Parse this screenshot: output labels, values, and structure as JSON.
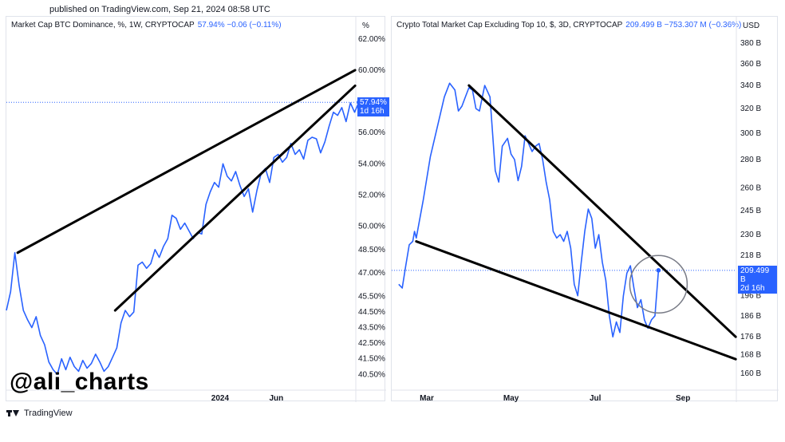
{
  "published": "published on TradingView.com, Sep 21, 2024 08:58 UTC",
  "watermark": "@ali_charts",
  "brand": "TradingView",
  "colors": {
    "line": "#2962ff",
    "trend": "#000000",
    "circle": "#787b86"
  },
  "left_chart": {
    "legend_title": "Market Cap BTC Dominance, %, 1W, CRYPTOCAP",
    "legend_values": "57.94%  −0.06 (−0.11%)",
    "axis_unit": "%",
    "last_value_tag": "57.94%",
    "countdown_tag": "1d 16h"
  },
  "right_chart": {
    "legend_title": "Crypto Total Market Cap Excluding Top 10, $, 3D, CRYPTOCAP",
    "legend_values": "209.499 B  −753.307 M (−0.36%)",
    "axis_unit": "USD",
    "last_value_tag": "209.499 B",
    "countdown_tag": "2d 16h"
  },
  "chart_data": [
    {
      "type": "line",
      "title": "Market Cap BTC Dominance, %, 1W, CRYPTOCAP",
      "y_ticks": [
        "62.00%",
        "60.00%",
        "57.94%",
        "56.00%",
        "54.00%",
        "52.00%",
        "50.00%",
        "48.50%",
        "47.00%",
        "45.50%",
        "44.50%",
        "43.50%",
        "42.50%",
        "41.50%",
        "40.50%"
      ],
      "y_tick_values": [
        62.0,
        60.0,
        57.94,
        56.0,
        54.0,
        52.0,
        50.0,
        48.5,
        47.0,
        45.5,
        44.5,
        43.5,
        42.5,
        41.5,
        40.5
      ],
      "x_ticks": [
        "2024",
        "Jun"
      ],
      "x_tick_positions": [
        0.57,
        0.72
      ],
      "series": [
        {
          "values": [
            44.6,
            45.8,
            48.3,
            46.2,
            44.6,
            44.0,
            43.5,
            44.2,
            43.0,
            42.4,
            41.3,
            40.8,
            40.5,
            41.5,
            40.8,
            41.6,
            41.0,
            40.7,
            41.4,
            40.9,
            41.2,
            41.8,
            41.3,
            40.7,
            41.0,
            41.6,
            42.2,
            43.8,
            44.6,
            44.2,
            44.5,
            47.5,
            47.7,
            47.3,
            47.6,
            48.5,
            48.0,
            48.7,
            49.2,
            50.7,
            50.5,
            49.8,
            50.2,
            49.7,
            49.2,
            49.6,
            49.5,
            51.4,
            52.2,
            52.8,
            52.5,
            54.0,
            53.2,
            52.9,
            53.5,
            52.6,
            51.9,
            52.4,
            50.9,
            52.3,
            53.4,
            53.7,
            52.8,
            54.4,
            54.6,
            54.1,
            54.4,
            55.3,
            54.6,
            54.9,
            54.3,
            55.5,
            55.7,
            55.6,
            54.7,
            55.4,
            56.4,
            57.3,
            57.1,
            57.6,
            56.7,
            57.9,
            57.3,
            57.94
          ]
        }
      ],
      "trendlines": [
        {
          "from": [
            0.03,
            48.3
          ],
          "to": [
            0.93,
            60.0
          ]
        },
        {
          "from": [
            0.29,
            44.6
          ],
          "to": [
            0.93,
            59.0
          ]
        }
      ],
      "ylim": [
        39.8,
        62.5
      ]
    },
    {
      "type": "line",
      "title": "Crypto Total Market Cap Excluding Top 10, $, 3D, CRYPTOCAP",
      "y_ticks": [
        "380 B",
        "360 B",
        "340 B",
        "320 B",
        "300 B",
        "280 B",
        "260 B",
        "245 B",
        "230 B",
        "218 B",
        "209.499 B",
        "196 B",
        "186 B",
        "176 B",
        "168 B",
        "160 B"
      ],
      "y_tick_values": [
        380,
        360,
        340,
        320,
        300,
        280,
        260,
        245,
        230,
        218,
        209.499,
        196,
        186,
        176,
        168,
        160
      ],
      "x_ticks": [
        "Mar",
        "May",
        "Jul",
        "Sep"
      ],
      "x_tick_positions": [
        0.1,
        0.34,
        0.58,
        0.83
      ],
      "series": [
        {
          "values": [
            202,
            200,
            212,
            224,
            226,
            232,
            228,
            252,
            282,
            305,
            330,
            342,
            336,
            318,
            322,
            330,
            338,
            336,
            320,
            318,
            340,
            330,
            272,
            264,
            290,
            296,
            284,
            280,
            265,
            275,
            298,
            292,
            286,
            290,
            292,
            280,
            264,
            252,
            232,
            228,
            230,
            226,
            232,
            222,
            202,
            196,
            214,
            232,
            246,
            240,
            222,
            230,
            214,
            204,
            186,
            176,
            183,
            178,
            196,
            208,
            212,
            200,
            190,
            194,
            184,
            180,
            184,
            186,
            209.5
          ],
          "x_fraction": [
            0.02,
            0.03,
            0.04,
            0.05,
            0.06,
            0.065,
            0.07,
            0.09,
            0.11,
            0.13,
            0.15,
            0.165,
            0.18,
            0.19,
            0.2,
            0.21,
            0.22,
            0.23,
            0.24,
            0.25,
            0.265,
            0.28,
            0.295,
            0.305,
            0.315,
            0.33,
            0.34,
            0.35,
            0.36,
            0.37,
            0.38,
            0.39,
            0.4,
            0.41,
            0.42,
            0.43,
            0.44,
            0.45,
            0.46,
            0.47,
            0.48,
            0.49,
            0.5,
            0.51,
            0.52,
            0.53,
            0.54,
            0.55,
            0.56,
            0.57,
            0.58,
            0.59,
            0.6,
            0.61,
            0.62,
            0.63,
            0.64,
            0.65,
            0.66,
            0.67,
            0.68,
            0.69,
            0.7,
            0.71,
            0.72,
            0.73,
            0.74,
            0.75,
            0.76
          ]
        }
      ],
      "trendlines": [
        {
          "from": [
            0.22,
            340
          ],
          "to": [
            0.98,
            176
          ]
        },
        {
          "from": [
            0.07,
            226
          ],
          "to": [
            0.98,
            166
          ]
        }
      ],
      "highlight_circle": {
        "center": [
          0.76,
          202
        ]
      },
      "ylim": [
        155,
        392
      ],
      "log_scale": true
    }
  ]
}
